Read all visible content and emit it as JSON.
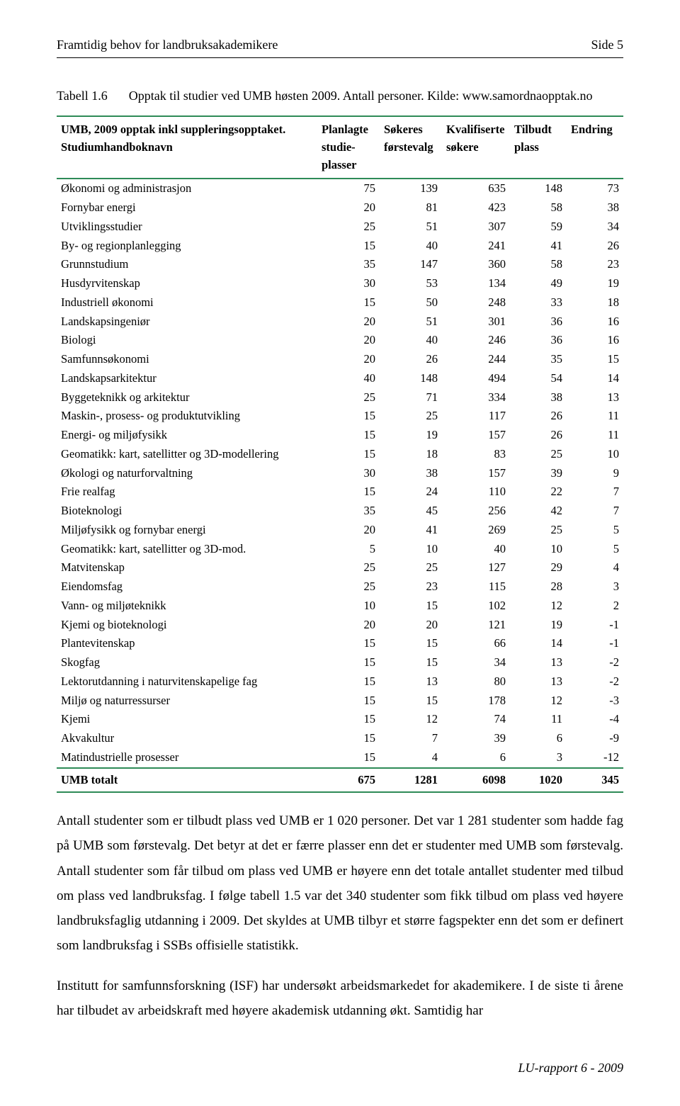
{
  "header": {
    "left": "Framtidig behov for landbruksakademikere",
    "right": "Side 5"
  },
  "table_caption": {
    "label": "Tabell 1.6",
    "desc": "Opptak til studier ved UMB høsten 2009. Antall personer. Kilde: www.samordnaopptak.no"
  },
  "table": {
    "columns": [
      {
        "line1": "UMB, 2009 opptak inkl suppleringsopptaket.",
        "line2": "Studiumhandboknavn",
        "align": "left"
      },
      {
        "line1": "Planlagte",
        "line2": "studie-",
        "line3": "plasser",
        "align": "center"
      },
      {
        "line1": "Søkeres",
        "line2": "førstevalg",
        "align": "center"
      },
      {
        "line1": "Kvalifiserte",
        "line2": "søkere",
        "align": "center"
      },
      {
        "line1": "Tilbudt",
        "line2": "plass",
        "align": "center"
      },
      {
        "line1": "Endring",
        "align": "center"
      }
    ],
    "rows": [
      [
        "Økonomi og administrasjon",
        75,
        139,
        635,
        148,
        73
      ],
      [
        "Fornybar energi",
        20,
        81,
        423,
        58,
        38
      ],
      [
        "Utviklingsstudier",
        25,
        51,
        307,
        59,
        34
      ],
      [
        "By- og regionplanlegging",
        15,
        40,
        241,
        41,
        26
      ],
      [
        "Grunnstudium",
        35,
        147,
        360,
        58,
        23
      ],
      [
        "Husdyrvitenskap",
        30,
        53,
        134,
        49,
        19
      ],
      [
        "Industriell økonomi",
        15,
        50,
        248,
        33,
        18
      ],
      [
        "Landskapsingeniør",
        20,
        51,
        301,
        36,
        16
      ],
      [
        "Biologi",
        20,
        40,
        246,
        36,
        16
      ],
      [
        "Samfunnsøkonomi",
        20,
        26,
        244,
        35,
        15
      ],
      [
        "Landskapsarkitektur",
        40,
        148,
        494,
        54,
        14
      ],
      [
        "Byggeteknikk og arkitektur",
        25,
        71,
        334,
        38,
        13
      ],
      [
        "Maskin-, prosess- og produktutvikling",
        15,
        25,
        117,
        26,
        11
      ],
      [
        "Energi- og miljøfysikk",
        15,
        19,
        157,
        26,
        11
      ],
      [
        "Geomatikk: kart, satellitter og 3D-modellering",
        15,
        18,
        83,
        25,
        10
      ],
      [
        "Økologi og naturforvaltning",
        30,
        38,
        157,
        39,
        9
      ],
      [
        "Frie realfag",
        15,
        24,
        110,
        22,
        7
      ],
      [
        "Bioteknologi",
        35,
        45,
        256,
        42,
        7
      ],
      [
        "Miljøfysikk og fornybar energi",
        20,
        41,
        269,
        25,
        5
      ],
      [
        "Geomatikk: kart, satellitter og 3D-mod.",
        5,
        10,
        40,
        10,
        5
      ],
      [
        "Matvitenskap",
        25,
        25,
        127,
        29,
        4
      ],
      [
        "Eiendomsfag",
        25,
        23,
        115,
        28,
        3
      ],
      [
        "Vann- og miljøteknikk",
        10,
        15,
        102,
        12,
        2
      ],
      [
        "Kjemi og bioteknologi",
        20,
        20,
        121,
        19,
        -1
      ],
      [
        "Plantevitenskap",
        15,
        15,
        66,
        14,
        -1
      ],
      [
        "Skogfag",
        15,
        15,
        34,
        13,
        -2
      ],
      [
        "Lektorutdanning i naturvitenskapelige fag",
        15,
        13,
        80,
        13,
        -2
      ],
      [
        "Miljø og naturressurser",
        15,
        15,
        178,
        12,
        -3
      ],
      [
        "Kjemi",
        15,
        12,
        74,
        11,
        -4
      ],
      [
        "Akvakultur",
        15,
        7,
        39,
        6,
        -9
      ],
      [
        "Matindustrielle prosesser",
        15,
        4,
        6,
        3,
        -12
      ]
    ],
    "total": [
      "UMB totalt",
      675,
      1281,
      6098,
      1020,
      345
    ],
    "rule_color": "#2e8b57"
  },
  "paragraphs": [
    "Antall studenter som er tilbudt plass ved UMB er 1 020 personer. Det var 1 281 studenter som hadde fag på UMB som førstevalg. Det betyr at det er færre plasser enn det er studenter med UMB som førstevalg. Antall studenter som får tilbud om plass ved UMB er høyere enn det totale antallet studenter med tilbud om plass ved landbruksfag. I følge tabell 1.5 var det 340 studenter som fikk tilbud om plass ved høyere landbruksfaglig utdanning i 2009. Det skyldes at UMB tilbyr et større fagspekter enn det som er definert som landbruksfag i SSBs offisielle statistikk.",
    "Institutt for samfunnsforskning (ISF) har undersøkt arbeidsmarkedet for akademikere. I de siste ti årene har tilbudet av arbeidskraft med høyere akademisk utdanning økt. Samtidig har"
  ],
  "footer": "LU-rapport 6 - 2009"
}
